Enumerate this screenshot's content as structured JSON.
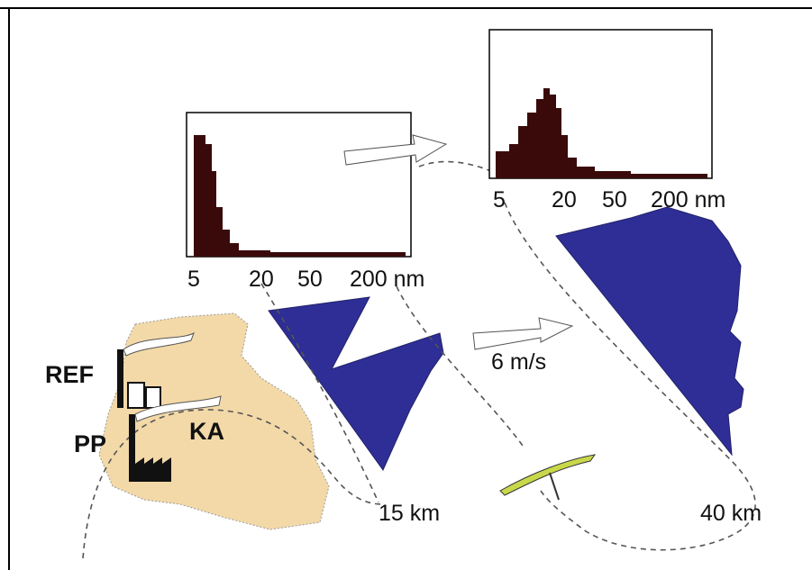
{
  "histograms": [
    {
      "axis_labels": [
        "5",
        "20",
        "50",
        "200 nm"
      ]
    },
    {
      "axis_labels": [
        "5",
        "20",
        "50",
        "200 nm"
      ]
    }
  ],
  "wind_speed": "6 m/s",
  "distances": [
    "15 km",
    "40 km"
  ],
  "sites": {
    "refinery": "REF",
    "power_plant": "PP",
    "city": "KA"
  }
}
